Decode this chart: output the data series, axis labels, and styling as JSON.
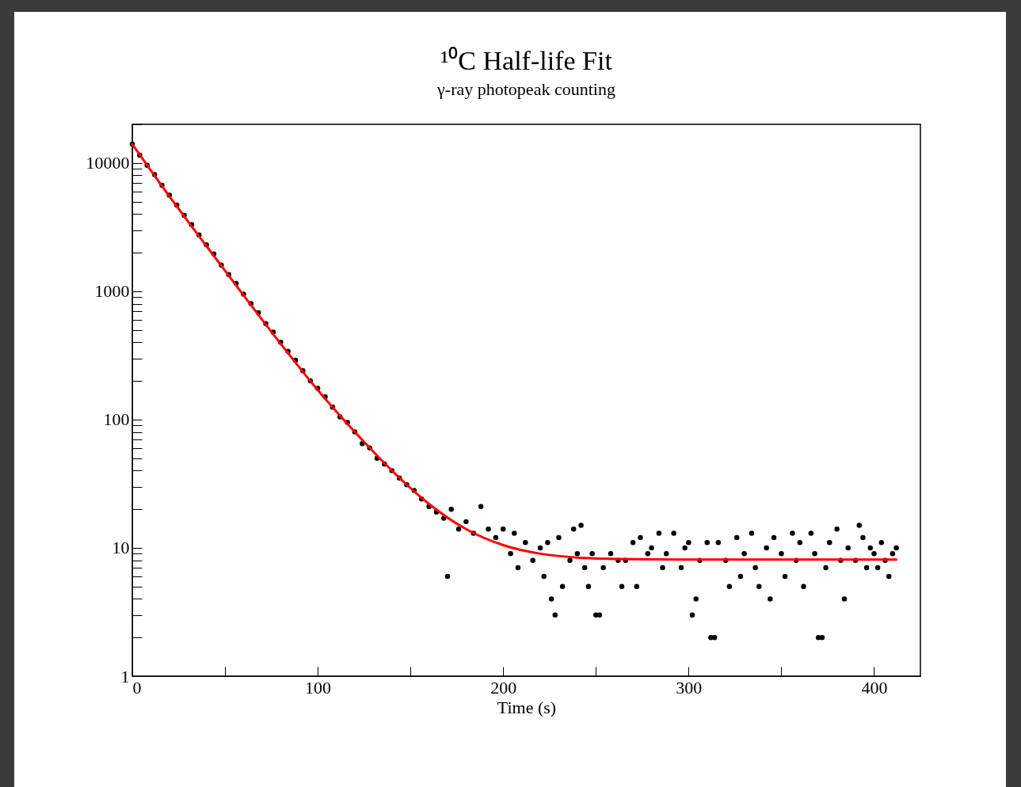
{
  "chart_data": {
    "type": "scatter",
    "title": "¹⁰C Half-life Fit",
    "subtitle": "γ-ray photopeak counting",
    "xlabel": "Time (s)",
    "xlim": [
      0,
      425
    ],
    "xticks": [
      0,
      {
        "value": 50,
        "label": null
      },
      100,
      {
        "value": 150,
        "label": null
      },
      200,
      {
        "value": 250,
        "label": null
      },
      300,
      {
        "value": 350,
        "label": null
      },
      400
    ],
    "ylim": [
      1,
      20000
    ],
    "log": "y",
    "yticks": [
      1,
      {
        "value": 2,
        "label": null
      },
      {
        "value": 3,
        "label": null
      },
      {
        "value": 4,
        "label": null
      },
      {
        "value": 5,
        "label": null
      },
      {
        "value": 6,
        "label": null
      },
      {
        "value": 7,
        "label": null
      },
      {
        "value": 8,
        "label": null
      },
      {
        "value": 9,
        "label": null
      },
      10,
      {
        "value": 20,
        "label": null
      },
      {
        "value": 30,
        "label": null
      },
      {
        "value": 40,
        "label": null
      },
      {
        "value": 50,
        "label": null
      },
      {
        "value": 60,
        "label": null
      },
      {
        "value": 70,
        "label": null
      },
      {
        "value": 80,
        "label": null
      },
      {
        "value": 90,
        "label": null
      },
      100,
      {
        "value": 200,
        "label": null
      },
      {
        "value": 300,
        "label": null
      },
      {
        "value": 400,
        "label": null
      },
      {
        "value": 500,
        "label": null
      },
      {
        "value": 600,
        "label": null
      },
      {
        "value": 700,
        "label": null
      },
      {
        "value": 800,
        "label": null
      },
      {
        "value": 900,
        "label": null
      },
      1000,
      {
        "value": 2000,
        "label": null
      },
      {
        "value": 3000,
        "label": null
      },
      {
        "value": 4000,
        "label": null
      },
      {
        "value": 5000,
        "label": null
      },
      {
        "value": 6000,
        "label": null
      },
      {
        "value": 7000,
        "label": null
      },
      {
        "value": 8000,
        "label": null
      },
      {
        "value": 9000,
        "label": null
      },
      10000,
      {
        "value": 20000,
        "label": null
      }
    ],
    "grid": false,
    "marker": "circle",
    "series": [
      {
        "color": "#000000",
        "x": [
          0,
          4,
          8,
          12,
          16,
          20,
          24,
          28,
          32,
          36,
          40,
          44,
          48,
          52,
          56,
          60,
          64,
          68,
          72,
          76,
          80,
          84,
          88,
          92,
          96,
          100,
          104,
          108,
          112,
          116,
          120,
          124,
          128,
          132,
          136,
          140,
          144,
          148,
          152,
          156,
          160,
          164,
          168,
          170,
          172,
          176,
          180,
          184,
          188,
          192,
          196,
          200,
          204,
          206,
          208,
          212,
          216,
          220,
          222,
          224,
          226,
          228,
          230,
          232,
          236,
          238,
          240,
          242,
          244,
          246,
          248,
          250,
          252,
          254,
          258,
          262,
          264,
          266,
          270,
          272,
          274,
          278,
          280,
          284,
          286,
          288,
          292,
          296,
          298,
          300,
          302,
          304,
          306,
          310,
          312,
          314,
          316,
          320,
          322,
          326,
          328,
          330,
          334,
          336,
          338,
          342,
          344,
          346,
          350,
          352,
          356,
          358,
          360,
          362,
          366,
          368,
          370,
          372,
          374,
          376,
          380,
          382,
          384,
          386,
          390,
          392,
          394,
          396,
          398,
          400,
          402,
          404,
          406,
          408,
          410,
          412
        ],
        "values": [
          14000,
          11500,
          9600,
          8100,
          6700,
          5600,
          4700,
          3900,
          3300,
          2750,
          2300,
          1950,
          1600,
          1350,
          1150,
          950,
          800,
          680,
          560,
          480,
          400,
          340,
          290,
          240,
          200,
          175,
          150,
          125,
          105,
          95,
          80,
          65,
          60,
          50,
          45,
          40,
          35,
          31,
          28,
          24,
          21,
          19,
          17,
          6,
          20,
          14,
          16,
          13,
          21,
          14,
          12,
          14,
          9,
          13,
          7,
          11,
          8,
          10,
          6,
          11,
          4,
          3,
          12,
          5,
          8,
          14,
          9,
          15,
          7,
          5,
          9,
          3,
          3,
          7,
          9,
          8,
          5,
          8,
          11,
          5,
          12,
          9,
          10,
          13,
          7,
          9,
          13,
          7,
          10,
          11,
          3,
          4,
          8,
          11,
          2,
          2,
          11,
          8,
          5,
          12,
          6,
          9,
          13,
          7,
          5,
          10,
          4,
          12,
          9,
          6,
          13,
          8,
          11,
          5,
          13,
          9,
          2,
          2,
          7,
          11,
          14,
          8,
          4,
          10,
          8,
          15,
          12,
          7,
          10,
          9,
          7,
          11,
          8,
          6,
          9,
          10
        ]
      },
      {
        "type": "line",
        "color": "#ff0000",
        "marker": "none",
        "line_style": "solid",
        "x": [
          0,
          20,
          40,
          60,
          80,
          100,
          120,
          140,
          160,
          180,
          200,
          220,
          240,
          260,
          300,
          412
        ],
        "values": [
          14000,
          5500,
          2250,
          930,
          390,
          170,
          80,
          40,
          22,
          14,
          10.5,
          9,
          8.4,
          8.2,
          8.1,
          8.1
        ]
      }
    ]
  }
}
